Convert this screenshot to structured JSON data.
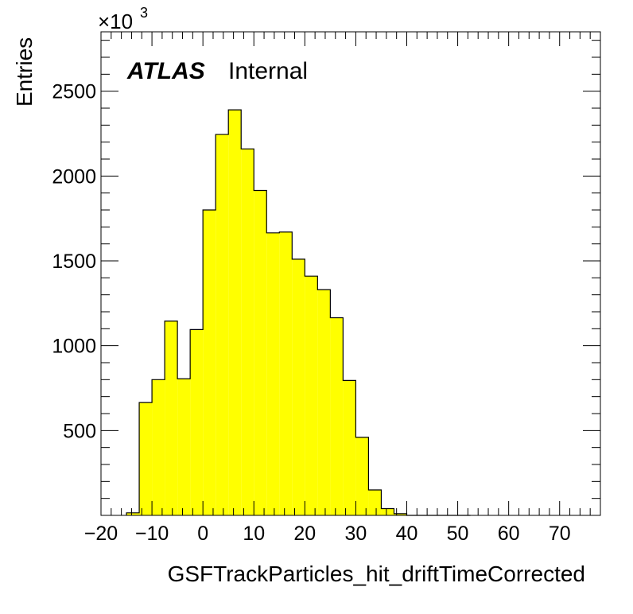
{
  "chart_data": {
    "type": "bar",
    "histogram": true,
    "bin_edges": [
      -15,
      -12.5,
      -10,
      -7.5,
      -5,
      -2.5,
      0,
      2.5,
      5,
      7.5,
      10,
      12.5,
      15,
      17.5,
      20,
      22.5,
      25,
      27.5,
      30,
      32.5,
      35,
      37.5,
      40,
      42.5,
      45,
      47.5,
      50,
      52.5
    ],
    "values": [
      15,
      665,
      800,
      1145,
      805,
      1095,
      1800,
      2245,
      2390,
      2160,
      1915,
      1665,
      1670,
      1510,
      1410,
      1330,
      1165,
      795,
      460,
      150,
      40,
      10,
      0,
      0,
      0,
      0,
      0
    ],
    "xlabel": "GSFTrackParticles_hit_driftTimeCorrected",
    "ylabel": "Entries",
    "xlim": [
      -20,
      78
    ],
    "ylim": [
      0,
      2850
    ],
    "y_multiplier": "×10",
    "y_multiplier_exponent": "3",
    "x_ticks": [
      -20,
      -10,
      0,
      10,
      20,
      30,
      40,
      50,
      60,
      70
    ],
    "x_tick_labels": [
      "−20",
      "−10",
      "0",
      "10",
      "20",
      "30",
      "40",
      "50",
      "60",
      "70"
    ],
    "y_ticks": [
      500,
      1000,
      1500,
      2000,
      2500
    ],
    "y_tick_labels": [
      "500",
      "1000",
      "1500",
      "2000",
      "2500"
    ],
    "fill_color": "#ffff00",
    "line_color": "#000000",
    "grid": false,
    "label_main": "ATLAS",
    "label_sub": "Internal"
  }
}
